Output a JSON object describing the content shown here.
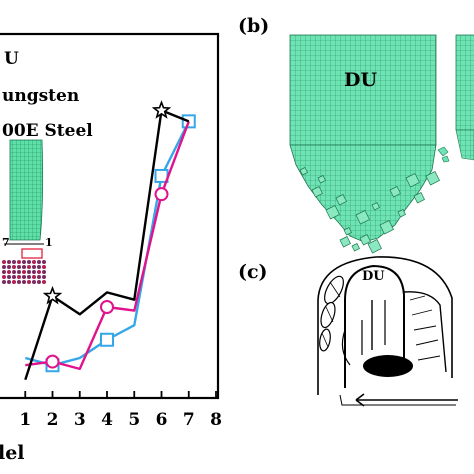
{
  "left_panel": {
    "legend": [
      {
        "label": "U",
        "color": "#000000"
      },
      {
        "label": "ungsten",
        "color": "#e0138c"
      },
      {
        "label": "00E Steel",
        "color": "#35a6e8"
      }
    ],
    "xlabel": "lel",
    "inset_labels": [
      "7",
      "1"
    ]
  },
  "chart_data": {
    "type": "line",
    "x": [
      1,
      2,
      3,
      4,
      5,
      6,
      7
    ],
    "xticks": [
      "1",
      "2",
      "3",
      "4",
      "5",
      "6",
      "7",
      "8"
    ],
    "xlim": [
      0,
      8
    ],
    "ylim": [
      0,
      10
    ],
    "xlabel": "lel",
    "series": [
      {
        "name": "U",
        "color": "#000000",
        "marker": "star",
        "marker_at": [
          2,
          6
        ],
        "values": [
          0.5,
          2.8,
          2.3,
          2.9,
          2.7,
          7.9,
          7.6
        ]
      },
      {
        "name": "ungsten",
        "color": "#e0138c",
        "marker": "circle",
        "marker_at": [
          2,
          4,
          6
        ],
        "values": [
          0.9,
          1.0,
          0.8,
          2.5,
          2.4,
          5.6,
          7.6
        ]
      },
      {
        "name": "00E Steel",
        "color": "#35a6e8",
        "marker": "square",
        "marker_at": [
          2,
          4,
          6,
          7
        ],
        "values": [
          1.1,
          0.9,
          1.1,
          1.6,
          2.0,
          6.1,
          7.6
        ]
      }
    ]
  },
  "panel_b": {
    "label": "(b)",
    "text": "DU"
  },
  "panel_c": {
    "label": "(c)",
    "text": "DU"
  }
}
